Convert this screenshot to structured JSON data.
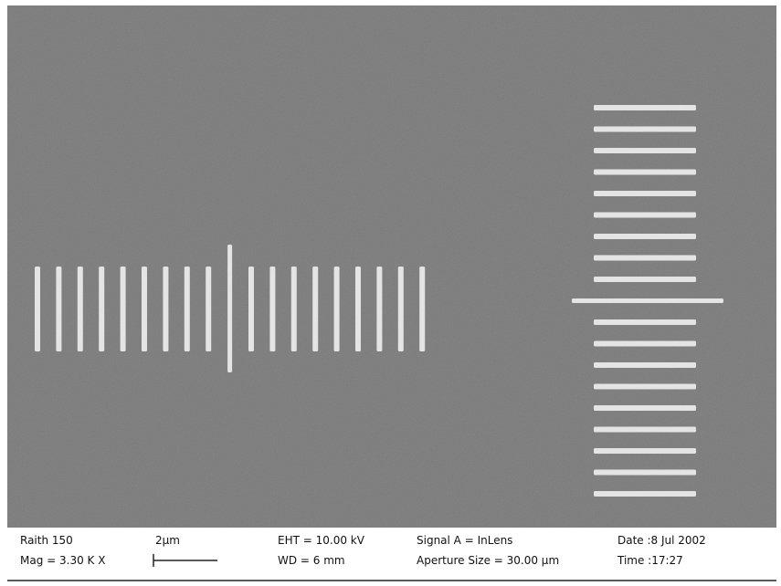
{
  "info_bar": {
    "instrument": "Raith 150",
    "magnification": "Mag = 3.30 K X",
    "scale": "2µm",
    "eht": "EHT = 10.00 kV",
    "wd": "WD = 6 mm",
    "signal": "Signal A = InLens",
    "aperture": "Aperture Size = 30.00 µm",
    "date": "Date :8 Jul 2002",
    "time": "Time :17:27"
  }
}
